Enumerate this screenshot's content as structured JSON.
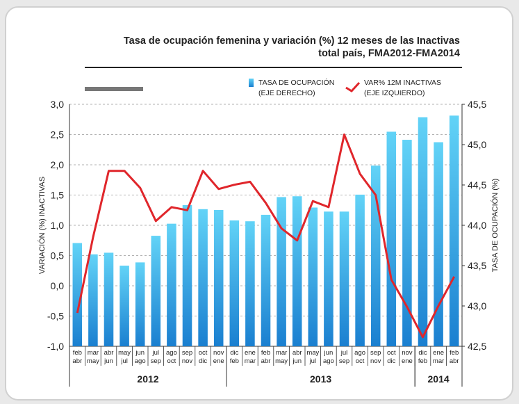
{
  "chart_data": {
    "type": "bar-line",
    "title": [
      "Tasa de ocupación femenina y variación (%) 12 meses de las Inactivas",
      "total país, FMA2012-FMA2014"
    ],
    "ylabel": "VARIACIÓN (%) INACTIVAS",
    "y2label": "TASA DE OCUPACIÓN (%)",
    "groups": [
      {
        "label": "2012",
        "categories": [
          [
            "feb",
            "abr"
          ],
          [
            "mar",
            "may"
          ],
          [
            "abr",
            "jun"
          ],
          [
            "may",
            "jul"
          ],
          [
            "jun",
            "ago"
          ],
          [
            "jul",
            "sep"
          ],
          [
            "ago",
            "oct"
          ],
          [
            "sep",
            "nov"
          ],
          [
            "oct",
            "dic"
          ],
          [
            "nov",
            "ene"
          ]
        ]
      },
      {
        "label": "2013",
        "categories": [
          [
            "dic",
            "feb"
          ],
          [
            "ene",
            "mar"
          ],
          [
            "feb",
            "abr"
          ],
          [
            "mar",
            "may"
          ],
          [
            "abr",
            "jun"
          ],
          [
            "may",
            "jul"
          ],
          [
            "jun",
            "ago"
          ],
          [
            "jul",
            "sep"
          ],
          [
            "ago",
            "oct"
          ],
          [
            "sep",
            "nov"
          ],
          [
            "oct",
            "dic"
          ],
          [
            "nov",
            "ene"
          ]
        ]
      },
      {
        "label": "2014",
        "categories": [
          [
            "dic",
            "feb"
          ],
          [
            "ene",
            "mar"
          ],
          [
            "feb",
            "abr"
          ]
        ]
      }
    ],
    "series": [
      {
        "name": [
          "TASA DE OCUPACIÓN",
          "(EJE DERECHO)"
        ],
        "type": "bar",
        "axis": "y2",
        "color": "#1a7fd0",
        "values": [
          43.78,
          43.64,
          43.66,
          43.5,
          43.54,
          43.87,
          44.02,
          44.25,
          44.2,
          44.19,
          44.06,
          44.05,
          44.13,
          44.35,
          44.36,
          44.22,
          44.17,
          44.17,
          44.38,
          44.74,
          45.16,
          45.06,
          45.34,
          45.03,
          45.36
        ]
      },
      {
        "name": [
          "VAR% 12M INACTIVAS",
          "(EJE IZQUIERDO)"
        ],
        "type": "line",
        "axis": "y",
        "color": "#e0262b",
        "values": [
          -0.45,
          0.8,
          1.9,
          1.9,
          1.62,
          1.07,
          1.3,
          1.25,
          1.9,
          1.6,
          1.67,
          1.72,
          1.37,
          0.95,
          0.75,
          1.4,
          1.3,
          2.5,
          1.85,
          1.5,
          0.1,
          -0.35,
          -0.85,
          -0.33,
          0.15
        ]
      }
    ],
    "ylim": [
      -1,
      3
    ],
    "yticks": [
      {
        "value": -1,
        "label": "-1,0"
      },
      {
        "value": -0.5,
        "label": "-0,5"
      },
      {
        "value": 0,
        "label": "0,0"
      },
      {
        "value": 0.5,
        "label": "0,5"
      },
      {
        "value": 1,
        "label": "1,0"
      },
      {
        "value": 1.5,
        "label": "1,5"
      },
      {
        "value": 2,
        "label": "2,0"
      },
      {
        "value": 2.5,
        "label": "2,5"
      },
      {
        "value": 3,
        "label": "3,0"
      }
    ],
    "y2lim": [
      42.5,
      45.5
    ],
    "y2ticks": [
      {
        "value": 42.5,
        "label": "42,5"
      },
      {
        "value": 43,
        "label": "43,0"
      },
      {
        "value": 43.5,
        "label": "43,5"
      },
      {
        "value": 44,
        "label": "44,0"
      },
      {
        "value": 44.5,
        "label": "44,5"
      },
      {
        "value": 45,
        "label": "45,0"
      },
      {
        "value": 45.5,
        "label": "45,5"
      }
    ],
    "grid": true
  }
}
